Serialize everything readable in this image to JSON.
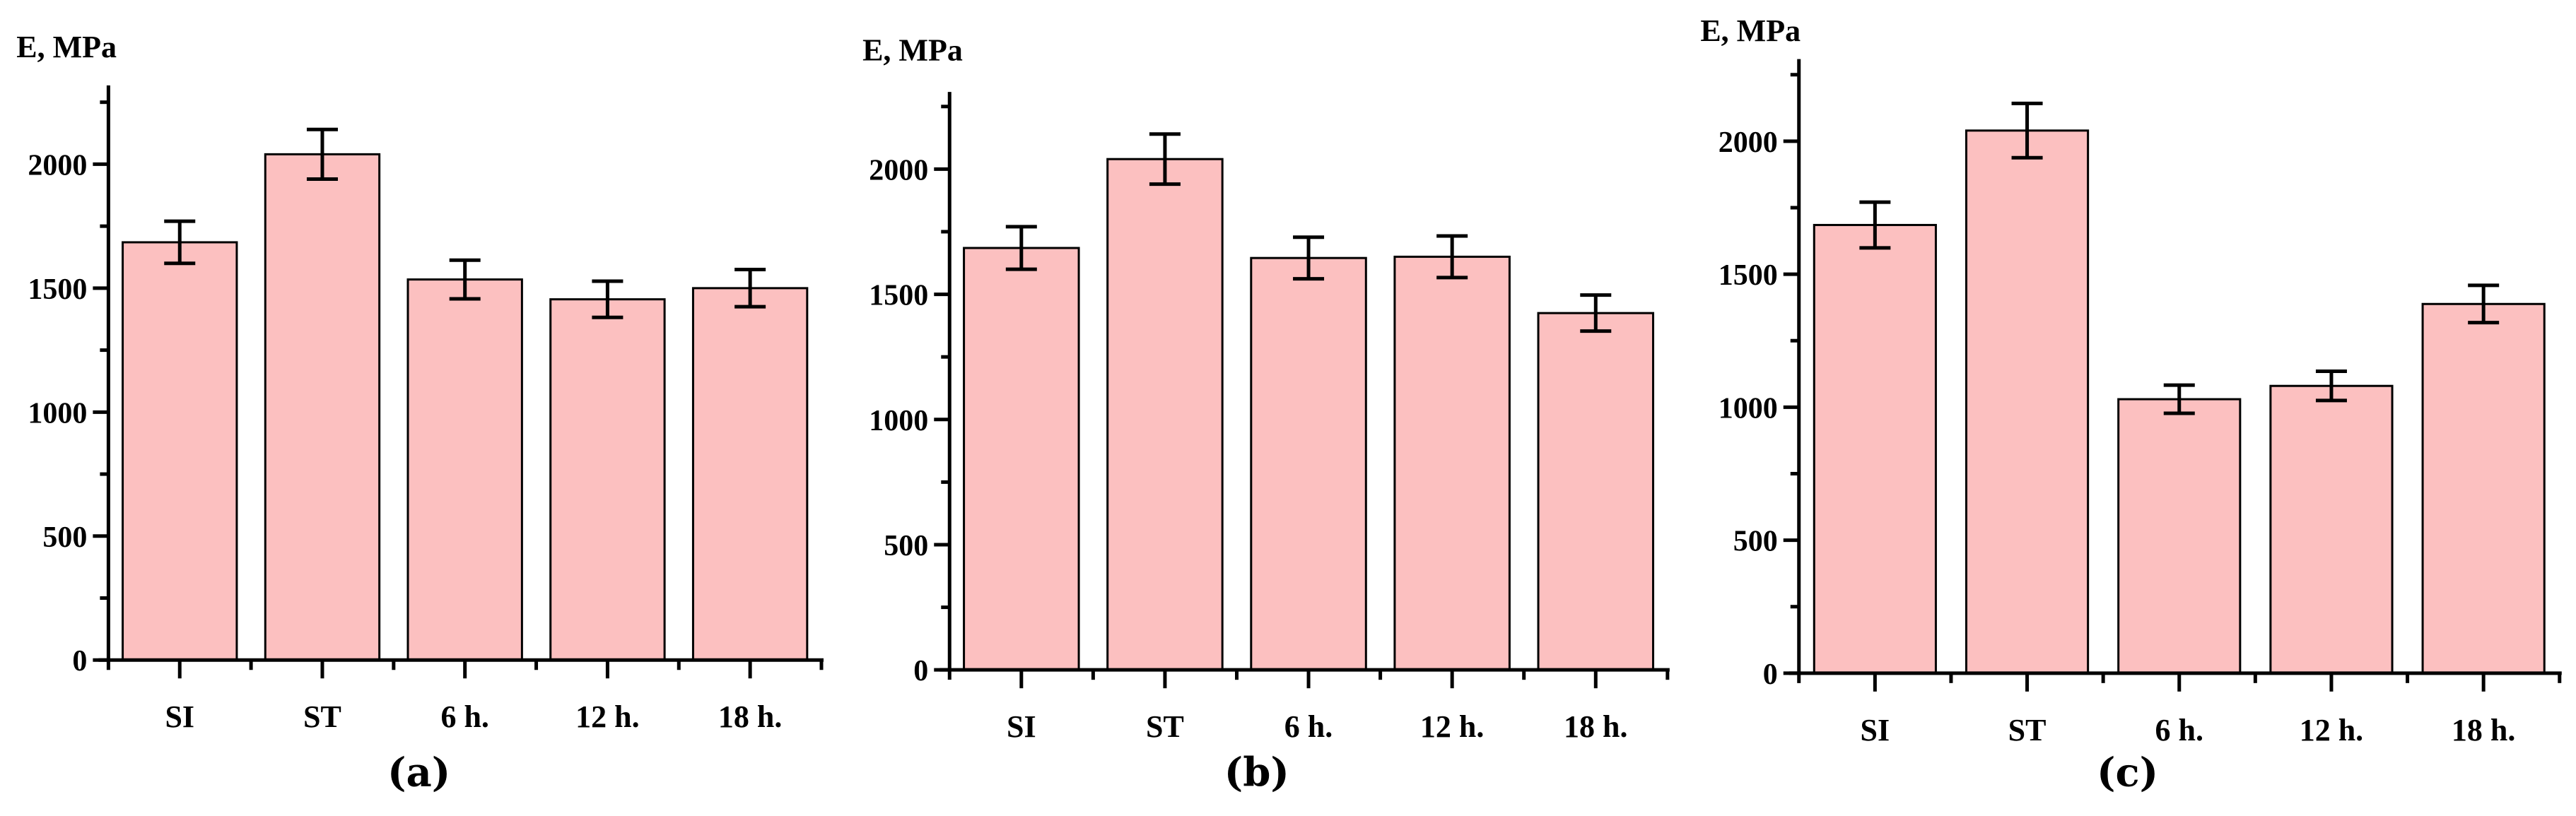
{
  "figure": {
    "captions": [
      "(a)",
      "(b)",
      "(c)"
    ],
    "bar_color": "#FCC0C0",
    "axis_color": "#000000"
  },
  "chart_data": [
    {
      "type": "bar",
      "panel": "(a)",
      "title": "",
      "xlabel": "",
      "ylabel": "E, MPa",
      "categories": [
        "SI",
        "ST",
        "6 h.",
        "12 h.",
        "18 h."
      ],
      "values": [
        1685,
        2040,
        1535,
        1455,
        1500
      ],
      "errors": [
        85,
        100,
        78,
        73,
        75
      ],
      "yticks": [
        0,
        500,
        1000,
        1500,
        2000
      ],
      "minor_tick_step": 250,
      "ylim": [
        0,
        2300
      ],
      "grid": false,
      "legend": null
    },
    {
      "type": "bar",
      "panel": "(b)",
      "title": "",
      "xlabel": "",
      "ylabel": "E, MPa",
      "categories": [
        "SI",
        "ST",
        "6 h.",
        "12 h.",
        "18 h."
      ],
      "values": [
        1685,
        2040,
        1645,
        1650,
        1425
      ],
      "errors": [
        85,
        100,
        83,
        83,
        72
      ],
      "yticks": [
        0,
        500,
        1000,
        1500,
        2000
      ],
      "minor_tick_step": 250,
      "ylim": [
        0,
        2300
      ],
      "grid": false,
      "legend": null
    },
    {
      "type": "bar",
      "panel": "(c)",
      "title": "",
      "xlabel": "",
      "ylabel": "E, MPa",
      "categories": [
        "SI",
        "ST",
        "6 h.",
        "12 h.",
        "18 h."
      ],
      "values": [
        1685,
        2040,
        1030,
        1080,
        1388
      ],
      "errors": [
        86,
        102,
        53,
        55,
        70
      ],
      "yticks": [
        0,
        500,
        1000,
        1500,
        2000
      ],
      "minor_tick_step": 250,
      "ylim": [
        0,
        2300
      ],
      "grid": false,
      "legend": null
    }
  ]
}
